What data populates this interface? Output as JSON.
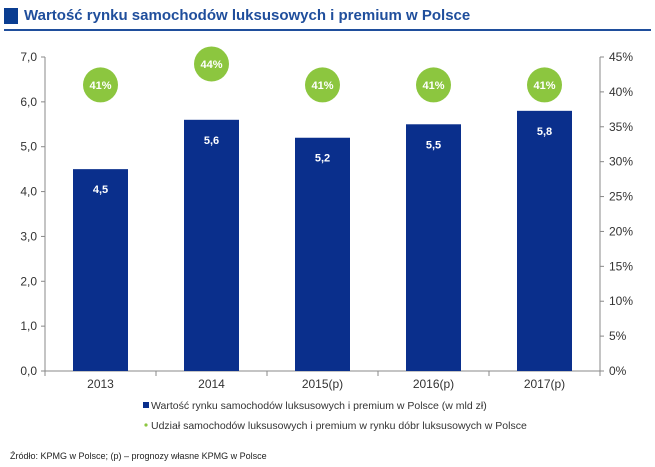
{
  "title": "Wartość rynku samochodów luksusowych i premium w Polsce",
  "source": "Źródło: KPMG w Polsce; (p) – prognozy własne KPMG w Polsce",
  "colors": {
    "bar": "#0a2f8c",
    "share": "#8cc63f",
    "title": "#1f4e9c"
  },
  "chart_data": {
    "type": "bar",
    "title": "Wartość rynku samochodów luksusowych i premium w Polsce",
    "categories": [
      "2013",
      "2014",
      "2015(p)",
      "2016(p)",
      "2017(p)"
    ],
    "series": [
      {
        "name": "Wartość rynku samochodów luksusowych i premium w Polsce (w mld zł)",
        "type": "bar",
        "axis": "left",
        "values": [
          4.5,
          5.6,
          5.2,
          5.5,
          5.8
        ],
        "labels": [
          "4,5",
          "5,6",
          "5,2",
          "5,5",
          "5,8"
        ]
      },
      {
        "name": "Udział samochodów luksusowych i premium w rynku dóbr luksusowych w Polsce",
        "type": "marker",
        "axis": "right",
        "values": [
          0.41,
          0.44,
          0.41,
          0.41,
          0.41
        ],
        "labels": [
          "41%",
          "44%",
          "41%",
          "41%",
          "41%"
        ]
      }
    ],
    "y_left": {
      "min": 0,
      "max": 7,
      "step": 1,
      "tick_labels": [
        "0,0",
        "1,0",
        "2,0",
        "3,0",
        "4,0",
        "5,0",
        "6,0",
        "7,0"
      ]
    },
    "y_right": {
      "min": 0,
      "max": 0.45,
      "step": 0.05,
      "tick_labels": [
        "0%",
        "5%",
        "10%",
        "15%",
        "20%",
        "25%",
        "30%",
        "35%",
        "40%",
        "45%"
      ]
    },
    "legend_position": "bottom"
  }
}
